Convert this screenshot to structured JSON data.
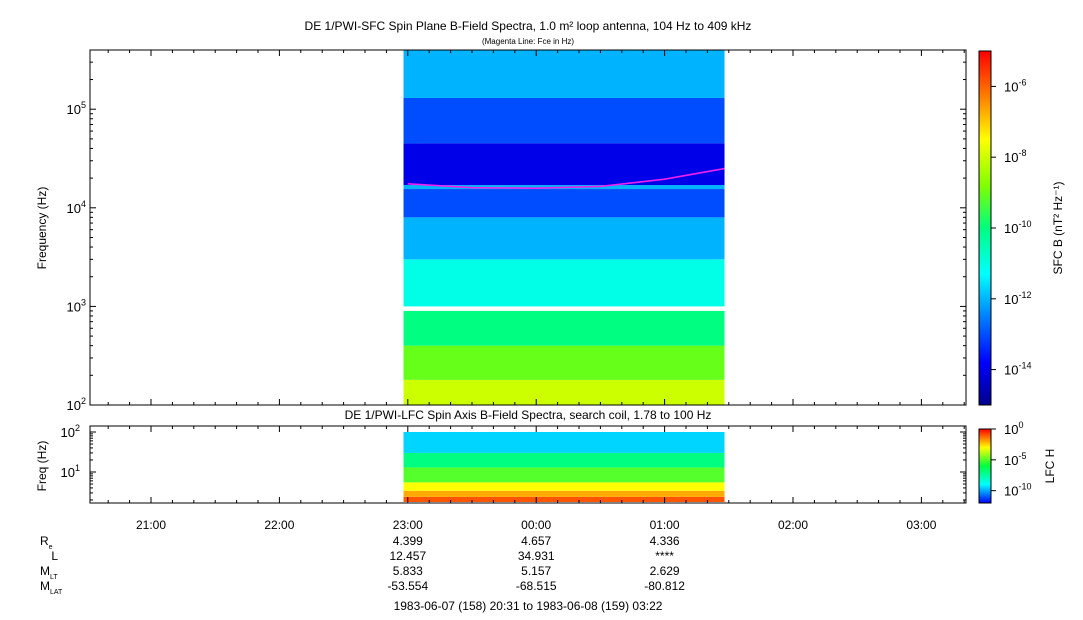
{
  "top_panel": {
    "title": "DE 1/PWI-SFC  Spin Plane B-Field Spectra, 1.0 m² loop antenna, 104 Hz to 409 kHz",
    "subtitle": "(Magenta Line: Fce in Hz)",
    "ylabel": "Frequency (Hz)",
    "ytick_labels": [
      {
        "base": "10",
        "exp": "5"
      },
      {
        "base": "10",
        "exp": "4"
      },
      {
        "base": "10",
        "exp": "3"
      },
      {
        "base": "10",
        "exp": "2"
      }
    ],
    "colorbar_label": "SFC B (nT² Hz⁻¹)",
    "colorbar_tick_labels": [
      {
        "base": "10",
        "exp": "-6"
      },
      {
        "base": "10",
        "exp": "-8"
      },
      {
        "base": "10",
        "exp": "-10"
      },
      {
        "base": "10",
        "exp": "-12"
      },
      {
        "base": "10",
        "exp": "-14"
      }
    ]
  },
  "bottom_panel": {
    "title": "DE 1/PWI-LFC  Spin Axis B-Field Spectra, search coil, 1.78 to 100 Hz",
    "ylabel": "Freq (Hz)",
    "ytick_labels": [
      {
        "base": "10",
        "exp": "2"
      },
      {
        "base": "10",
        "exp": "1"
      }
    ],
    "colorbar_label": "LFC H",
    "colorbar_tick_labels": [
      {
        "base": "10",
        "exp": "0"
      },
      {
        "base": "10",
        "exp": "-5"
      },
      {
        "base": "10",
        "exp": "-10"
      }
    ]
  },
  "xtick_labels": [
    "21:00",
    "22:00",
    "23:00",
    "00:00",
    "01:00",
    "02:00",
    "03:00"
  ],
  "ephemeris": {
    "rows": [
      {
        "label": "R",
        "sub": "e",
        "values": [
          "4.399",
          "4.657",
          "4.336"
        ]
      },
      {
        "label": "L",
        "sub": "",
        "values": [
          "12.457",
          "34.931",
          "****"
        ]
      },
      {
        "label": "M",
        "sub": "LT",
        "values": [
          "5.833",
          "5.157",
          "2.629"
        ]
      },
      {
        "label": "M",
        "sub": "LAT",
        "values": [
          "-53.554",
          "-68.515",
          "-80.812"
        ]
      }
    ]
  },
  "time_range": "1983-06-07 (158) 20:31 to 1983-06-08 (159) 03:22",
  "colors": {
    "fce_line": "#ee22ee",
    "colormap": [
      "#00008b",
      "#0000ff",
      "#0080ff",
      "#00ffff",
      "#00ff80",
      "#80ff00",
      "#ffff00",
      "#ff8000",
      "#ff0000"
    ]
  },
  "chart_data": [
    {
      "type": "heatmap",
      "title": "DE 1/PWI-SFC  Spin Plane B-Field Spectra, 1.0 m² loop antenna, 104 Hz to 409 kHz",
      "ylabel": "Frequency (Hz)",
      "yscale": "log",
      "ylim": [
        100,
        409000
      ],
      "xlim": [
        "20:31",
        "03:22"
      ],
      "data_coverage": [
        "22:58",
        "01:28"
      ],
      "colorbar": {
        "label": "SFC B (nT² Hz⁻¹)",
        "scale": "log",
        "range": [
          1e-15,
          1e-05
        ]
      },
      "spectral_bands": [
        {
          "f_low": 100,
          "f_high": 180,
          "level": 1e-08
        },
        {
          "f_low": 180,
          "f_high": 400,
          "level": 1e-09
        },
        {
          "f_low": 400,
          "f_high": 900,
          "level": 1e-10
        },
        {
          "f_low": 1000,
          "f_high": 3000,
          "level": 1e-11
        },
        {
          "f_low": 3000,
          "f_high": 8000,
          "level": 1e-12
        },
        {
          "f_low": 8000,
          "f_high": 15500,
          "level": 1e-13
        },
        {
          "f_low": 15500,
          "f_high": 17000,
          "level": 1e-12
        },
        {
          "f_low": 17000,
          "f_high": 45000,
          "level": 1e-14
        },
        {
          "f_low": 45000,
          "f_high": 130000,
          "level": 1e-13
        },
        {
          "f_low": 130000,
          "f_high": 409000,
          "level": 1e-12
        }
      ],
      "fce_line": {
        "name": "Fce in Hz",
        "time": [
          "23:00",
          "23:30",
          "00:00",
          "00:30",
          "01:00",
          "01:28"
        ],
        "fce_hz": [
          17500,
          16000,
          15800,
          16500,
          19500,
          25000
        ]
      }
    },
    {
      "type": "heatmap",
      "title": "DE 1/PWI-LFC  Spin Axis B-Field Spectra, search coil, 1.78 to 100 Hz",
      "ylabel": "Freq (Hz)",
      "yscale": "log",
      "ylim": [
        1.78,
        100
      ],
      "data_coverage": [
        "22:58",
        "01:28"
      ],
      "colorbar": {
        "label": "LFC H",
        "scale": "log",
        "range": [
          1e-12,
          1
        ]
      },
      "spectral_bands": [
        {
          "f_low": 1.78,
          "f_high": 2.4,
          "level": 0.1
        },
        {
          "f_low": 2.4,
          "f_high": 3.4,
          "level": 0.01
        },
        {
          "f_low": 3.4,
          "f_high": 5.5,
          "level": 0.001
        },
        {
          "f_low": 5.5,
          "f_high": 13,
          "level": 1e-05
        },
        {
          "f_low": 13,
          "f_high": 30,
          "level": 1e-06
        },
        {
          "f_low": 30,
          "f_high": 100,
          "level": 1e-08
        }
      ]
    }
  ]
}
